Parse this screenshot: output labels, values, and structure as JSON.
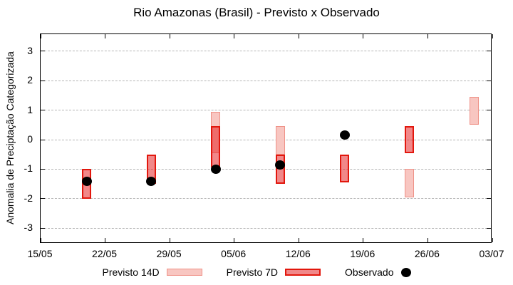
{
  "title": "Rio Amazonas (Brasil) - Previsto x Observado",
  "legend": {
    "items": [
      {
        "label": "Previsto 14D",
        "swatch": "box-14d"
      },
      {
        "label": "Previsto 7D",
        "swatch": "box-7d"
      },
      {
        "label": "Observado",
        "swatch": "dot"
      }
    ]
  },
  "colors": {
    "previsto_14d_fill": "#f8c6c1",
    "previsto_14d_border": "#ef9288",
    "previsto_7d_fill": "rgba(228,26,28,0.52)",
    "previsto_7d_border": "#e2170d",
    "observado": "#000000",
    "grid": "#b4b4b4",
    "frame": "#000000",
    "background": "#ffffff"
  },
  "chart_data": {
    "type": "bar",
    "subtype": "weekly forecast range-bars with observed scatter points",
    "title": "Rio Amazonas (Brasil) - Previsto x Observado",
    "xlabel": "",
    "ylabel": "Anomalia de Preciptação Categorizada",
    "ylim": [
      -3.55,
      3.55
    ],
    "y_ticks": [
      3,
      2,
      1,
      0,
      -1,
      -2,
      -3
    ],
    "x_tick_labels": [
      "15/05",
      "22/05",
      "29/05",
      "05/06",
      "12/06",
      "19/06",
      "26/06",
      "03/07"
    ],
    "x_tick_days": [
      0,
      7,
      14,
      21,
      28,
      35,
      42,
      49
    ],
    "x_range_days": [
      0,
      49
    ],
    "grid": "horizontal dashed at integer y values",
    "legend_position": "bottom center",
    "series": [
      {
        "name": "Previsto 14D",
        "type": "range-bar",
        "points": [
          {
            "date": "03/06",
            "day": 19,
            "high": 0.95,
            "low": -0.45
          },
          {
            "date": "10/06",
            "day": 26,
            "high": 0.45,
            "low": -0.5
          },
          {
            "date": "24/06",
            "day": 40,
            "high": -1.0,
            "low": -1.95
          },
          {
            "date": "01/07",
            "day": 47,
            "high": 1.45,
            "low": 0.5
          }
        ]
      },
      {
        "name": "Previsto 7D",
        "type": "range-bar",
        "points": [
          {
            "date": "20/05",
            "day": 5,
            "high": -1.0,
            "low": -2.0
          },
          {
            "date": "27/05",
            "day": 12,
            "high": -0.5,
            "low": -1.5
          },
          {
            "date": "03/06",
            "day": 19,
            "high": 0.45,
            "low": -0.95
          },
          {
            "date": "10/06",
            "day": 26,
            "high": -0.5,
            "low": -1.5
          },
          {
            "date": "17/06",
            "day": 33,
            "high": -0.5,
            "low": -1.45
          },
          {
            "date": "24/06",
            "day": 40,
            "high": 0.45,
            "low": -0.45
          }
        ]
      },
      {
        "name": "Observado",
        "type": "scatter",
        "points": [
          {
            "date": "20/05",
            "day": 5,
            "value": -1.4
          },
          {
            "date": "27/05",
            "day": 12,
            "value": -1.4
          },
          {
            "date": "03/06",
            "day": 19,
            "value": -1.0
          },
          {
            "date": "10/06",
            "day": 26,
            "value": -0.85
          },
          {
            "date": "17/06",
            "day": 33,
            "value": 0.15
          }
        ]
      }
    ]
  }
}
